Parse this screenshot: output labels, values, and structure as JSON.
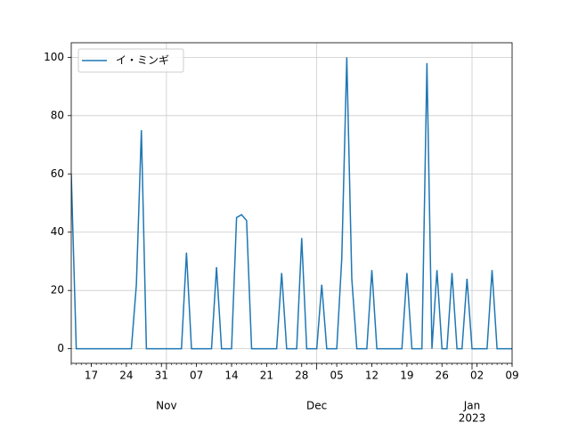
{
  "chart_data": {
    "type": "line",
    "x": [
      "2022-10-13",
      "2022-10-14",
      "2022-10-15",
      "2022-10-16",
      "2022-10-17",
      "2022-10-18",
      "2022-10-19",
      "2022-10-20",
      "2022-10-21",
      "2022-10-22",
      "2022-10-23",
      "2022-10-24",
      "2022-10-25",
      "2022-10-26",
      "2022-10-27",
      "2022-10-28",
      "2022-10-29",
      "2022-10-30",
      "2022-10-31",
      "2022-11-01",
      "2022-11-02",
      "2022-11-03",
      "2022-11-04",
      "2022-11-05",
      "2022-11-06",
      "2022-11-07",
      "2022-11-08",
      "2022-11-09",
      "2022-11-10",
      "2022-11-11",
      "2022-11-12",
      "2022-11-13",
      "2022-11-14",
      "2022-11-15",
      "2022-11-16",
      "2022-11-17",
      "2022-11-18",
      "2022-11-19",
      "2022-11-20",
      "2022-11-21",
      "2022-11-22",
      "2022-11-23",
      "2022-11-24",
      "2022-11-25",
      "2022-11-26",
      "2022-11-27",
      "2022-11-28",
      "2022-11-29",
      "2022-11-30",
      "2022-12-01",
      "2022-12-02",
      "2022-12-03",
      "2022-12-04",
      "2022-12-05",
      "2022-12-06",
      "2022-12-07",
      "2022-12-08",
      "2022-12-09",
      "2022-12-10",
      "2022-12-11",
      "2022-12-12",
      "2022-12-13",
      "2022-12-14",
      "2022-12-15",
      "2022-12-16",
      "2022-12-17",
      "2022-12-18",
      "2022-12-19",
      "2022-12-20",
      "2022-12-21",
      "2022-12-22",
      "2022-12-23",
      "2022-12-24",
      "2022-12-25",
      "2022-12-26",
      "2022-12-27",
      "2022-12-28",
      "2022-12-29",
      "2022-12-30",
      "2022-12-31",
      "2023-01-01",
      "2023-01-02",
      "2023-01-03",
      "2023-01-04",
      "2023-01-05",
      "2023-01-06",
      "2023-01-07",
      "2023-01-08",
      "2023-01-09"
    ],
    "series": [
      {
        "name": "イ・ミンギ",
        "color": "#1f77b4",
        "values": [
          60,
          0,
          0,
          0,
          0,
          0,
          0,
          0,
          0,
          0,
          0,
          0,
          0,
          22,
          75,
          0,
          0,
          0,
          0,
          0,
          0,
          0,
          0,
          33,
          0,
          0,
          0,
          0,
          0,
          28,
          0,
          0,
          0,
          45,
          46,
          44,
          0,
          0,
          0,
          0,
          0,
          0,
          26,
          0,
          0,
          0,
          38,
          0,
          0,
          0,
          22,
          0,
          0,
          0,
          31,
          100,
          24,
          0,
          0,
          0,
          27,
          0,
          0,
          0,
          0,
          0,
          0,
          26,
          0,
          0,
          0,
          98,
          0,
          27,
          0,
          0,
          26,
          0,
          0,
          24,
          0,
          0,
          0,
          0,
          27,
          0,
          0,
          0,
          0
        ]
      }
    ],
    "xlim": [
      "2022-10-13",
      "2023-01-09"
    ],
    "xticks": [
      {
        "value": "2022-10-17",
        "label": "17"
      },
      {
        "value": "2022-10-24",
        "label": "24"
      },
      {
        "value": "2022-10-31",
        "label": "31"
      },
      {
        "value": "2022-11-07",
        "label": "07"
      },
      {
        "value": "2022-11-14",
        "label": "14"
      },
      {
        "value": "2022-11-21",
        "label": "21"
      },
      {
        "value": "2022-11-28",
        "label": "28"
      },
      {
        "value": "2022-12-05",
        "label": "05"
      },
      {
        "value": "2022-12-12",
        "label": "12"
      },
      {
        "value": "2022-12-19",
        "label": "19"
      },
      {
        "value": "2022-12-26",
        "label": "26"
      },
      {
        "value": "2023-01-02",
        "label": "02"
      },
      {
        "value": "2023-01-09",
        "label": "09"
      }
    ],
    "month_labels": [
      {
        "value": "2022-11-01",
        "label": "Nov"
      },
      {
        "value": "2022-12-01",
        "label": "Dec"
      },
      {
        "value": "2023-01-01",
        "label": "Jan"
      }
    ],
    "year_label": {
      "value": "2023-01-01",
      "label": "2023"
    },
    "ylim": [
      -5,
      105
    ],
    "yticks": [
      0,
      20,
      40,
      60,
      80,
      100
    ],
    "grid": true,
    "legend": "upper left"
  }
}
